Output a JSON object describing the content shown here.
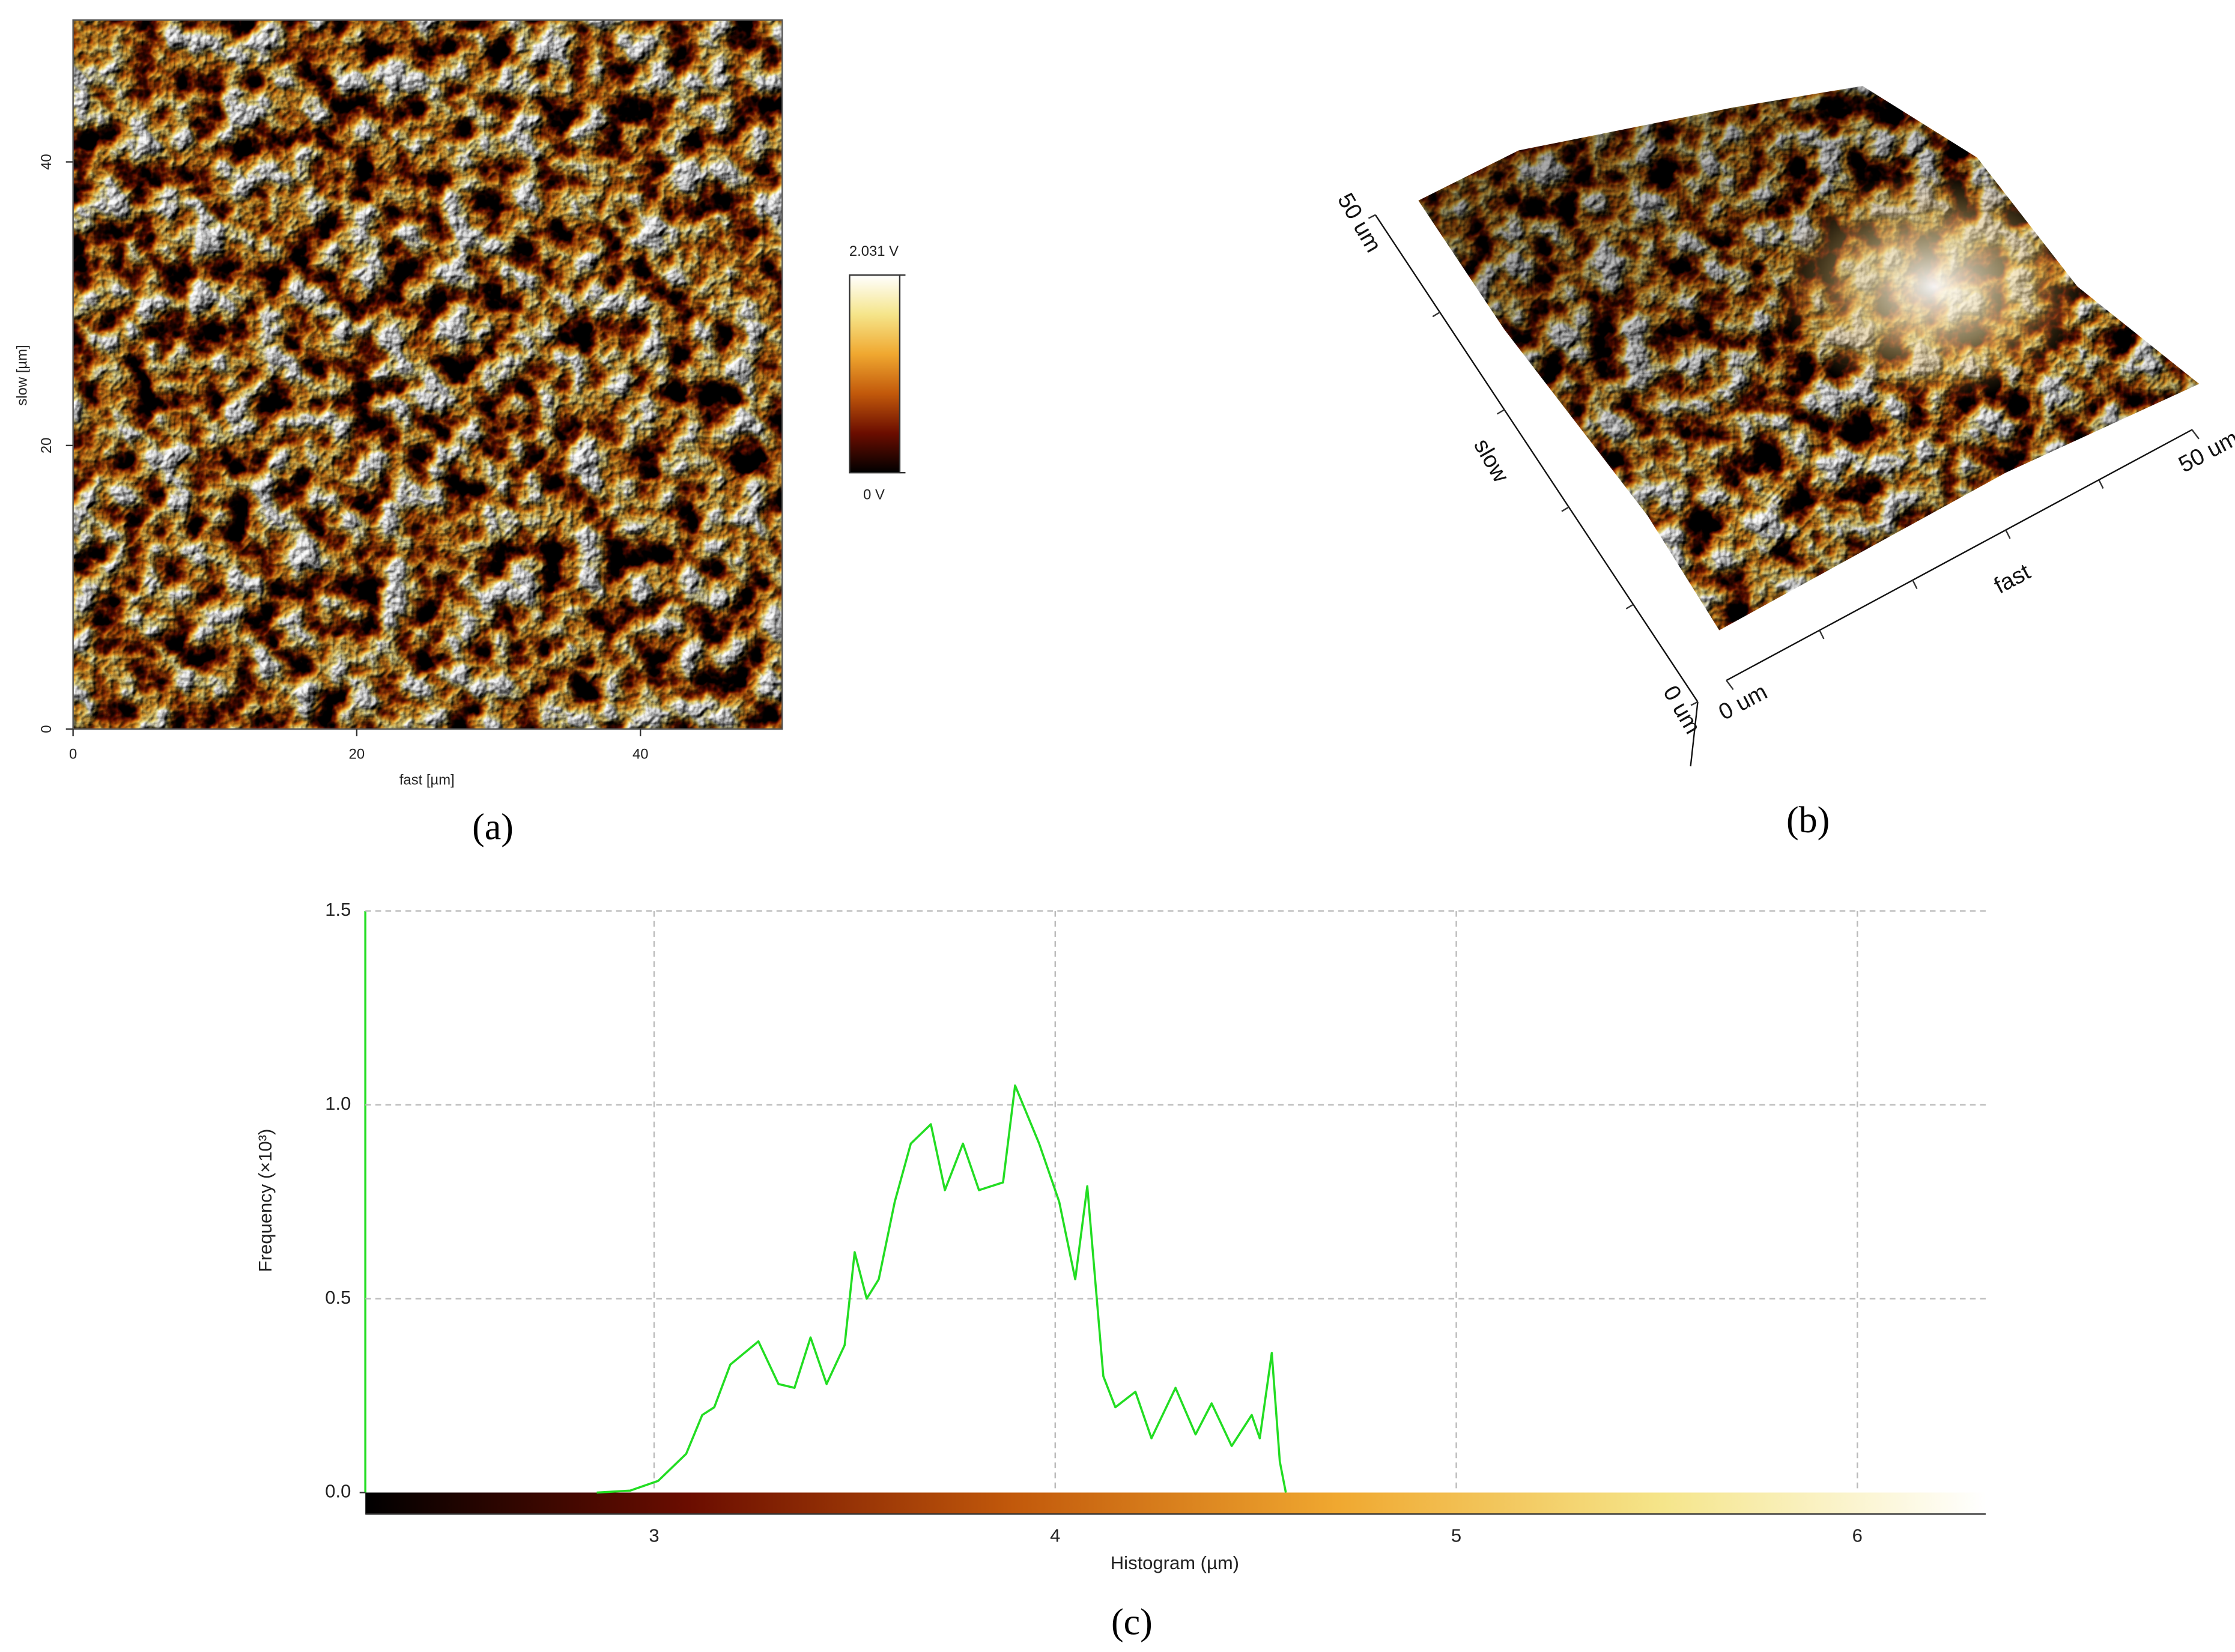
{
  "chart_data": [
    {
      "type": "image",
      "panel_label": "(a)",
      "xlabel": "fast [µm]",
      "ylabel": "slow [µm]",
      "xlim": [
        0,
        50
      ],
      "ylim": [
        0,
        50
      ],
      "xticks": [
        0,
        20,
        40
      ],
      "yticks": [
        0,
        20,
        40
      ],
      "clim": [
        0,
        2.031
      ],
      "cticks": [
        {
          "value": 0,
          "label": "0 V"
        },
        {
          "value": 2.031,
          "label": "2.031 V"
        }
      ],
      "colormap": [
        "#000000",
        "#6b0d00",
        "#c2590b",
        "#f0a830",
        "#f5e58a",
        "#ffffff"
      ]
    },
    {
      "type": "surface3d",
      "panel_label": "(b)",
      "xlabel": "fast",
      "ylabel": "slow",
      "xlim": [
        0,
        50
      ],
      "ylim": [
        0,
        50
      ],
      "xticks": [
        {
          "value": 0,
          "label": "0 um"
        },
        {
          "value": 50,
          "label": "50 um"
        }
      ],
      "yticks": [
        {
          "value": 0,
          "label": "0 um"
        },
        {
          "value": 50,
          "label": "50 um"
        }
      ]
    },
    {
      "type": "line",
      "panel_label": "(c)",
      "xlabel": "Histogram (µm)",
      "ylabel": "Frequency (×10³)",
      "xlim": [
        2.28,
        6.32
      ],
      "ylim": [
        0,
        1.5
      ],
      "xticks": [
        3,
        4,
        5,
        6
      ],
      "yticks": [
        {
          "value": 0,
          "label": "0.0"
        },
        0.5,
        {
          "value": 1,
          "label": "1.0"
        },
        1.5
      ],
      "grid": true,
      "color": "#22dd22",
      "colormap": [
        "#000000",
        "#6b0d00",
        "#c2590b",
        "#f0a830",
        "#f5e58a",
        "#ffffff"
      ],
      "x": [
        2.857,
        2.94,
        3.01,
        3.08,
        3.12,
        3.15,
        3.19,
        3.26,
        3.31,
        3.35,
        3.39,
        3.43,
        3.475,
        3.5,
        3.53,
        3.56,
        3.6,
        3.64,
        3.69,
        3.725,
        3.77,
        3.81,
        3.87,
        3.9,
        3.96,
        4.01,
        4.05,
        4.08,
        4.12,
        4.15,
        4.2,
        4.24,
        4.3,
        4.35,
        4.39,
        4.44,
        4.49,
        4.51,
        4.54,
        4.56,
        4.575
      ],
      "values": [
        0,
        0.005,
        0.03,
        0.1,
        0.2,
        0.22,
        0.33,
        0.39,
        0.28,
        0.27,
        0.4,
        0.28,
        0.38,
        0.62,
        0.5,
        0.55,
        0.75,
        0.9,
        0.95,
        0.78,
        0.9,
        0.78,
        0.8,
        1.05,
        0.9,
        0.75,
        0.55,
        0.79,
        0.3,
        0.22,
        0.26,
        0.14,
        0.27,
        0.15,
        0.23,
        0.12,
        0.2,
        0.14,
        0.36,
        0.08,
        0
      ]
    }
  ]
}
